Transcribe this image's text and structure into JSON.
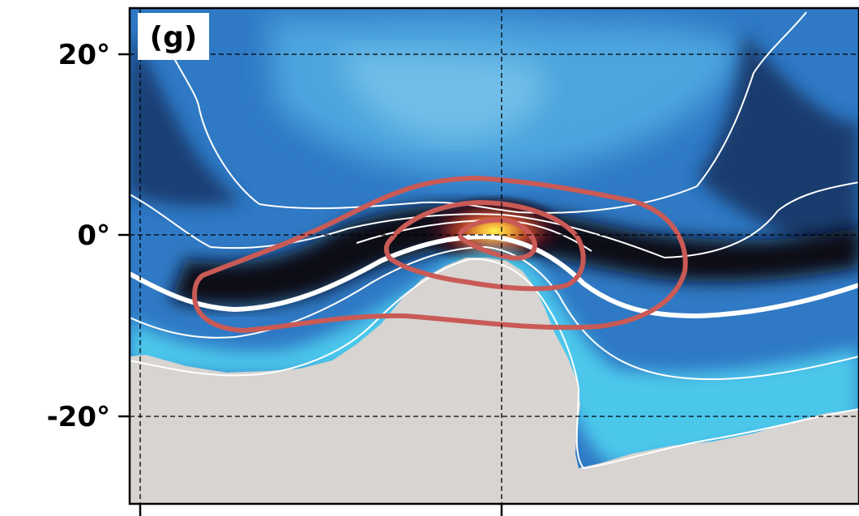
{
  "chart_data": {
    "type": "heatmap",
    "panel_label": "(g)",
    "y_axis": {
      "range": [
        -30,
        25
      ],
      "ticks": [
        20,
        0,
        -20
      ],
      "tick_labels": [
        "20°",
        "0°",
        "-20°"
      ]
    },
    "x_axis": {
      "tick_labels": []
    },
    "grid": true,
    "colormap": [
      "#d7d4d1",
      "#a8e6f6",
      "#4fc3ea",
      "#2f79c5",
      "#1c3f86",
      "#090b18",
      "#301018",
      "#9b3a22",
      "#e38a24",
      "#fff04d"
    ],
    "colors": {
      "land": "#d7d4d1",
      "red_contour": "#c95a56",
      "white_contour": "#ffffff"
    }
  }
}
